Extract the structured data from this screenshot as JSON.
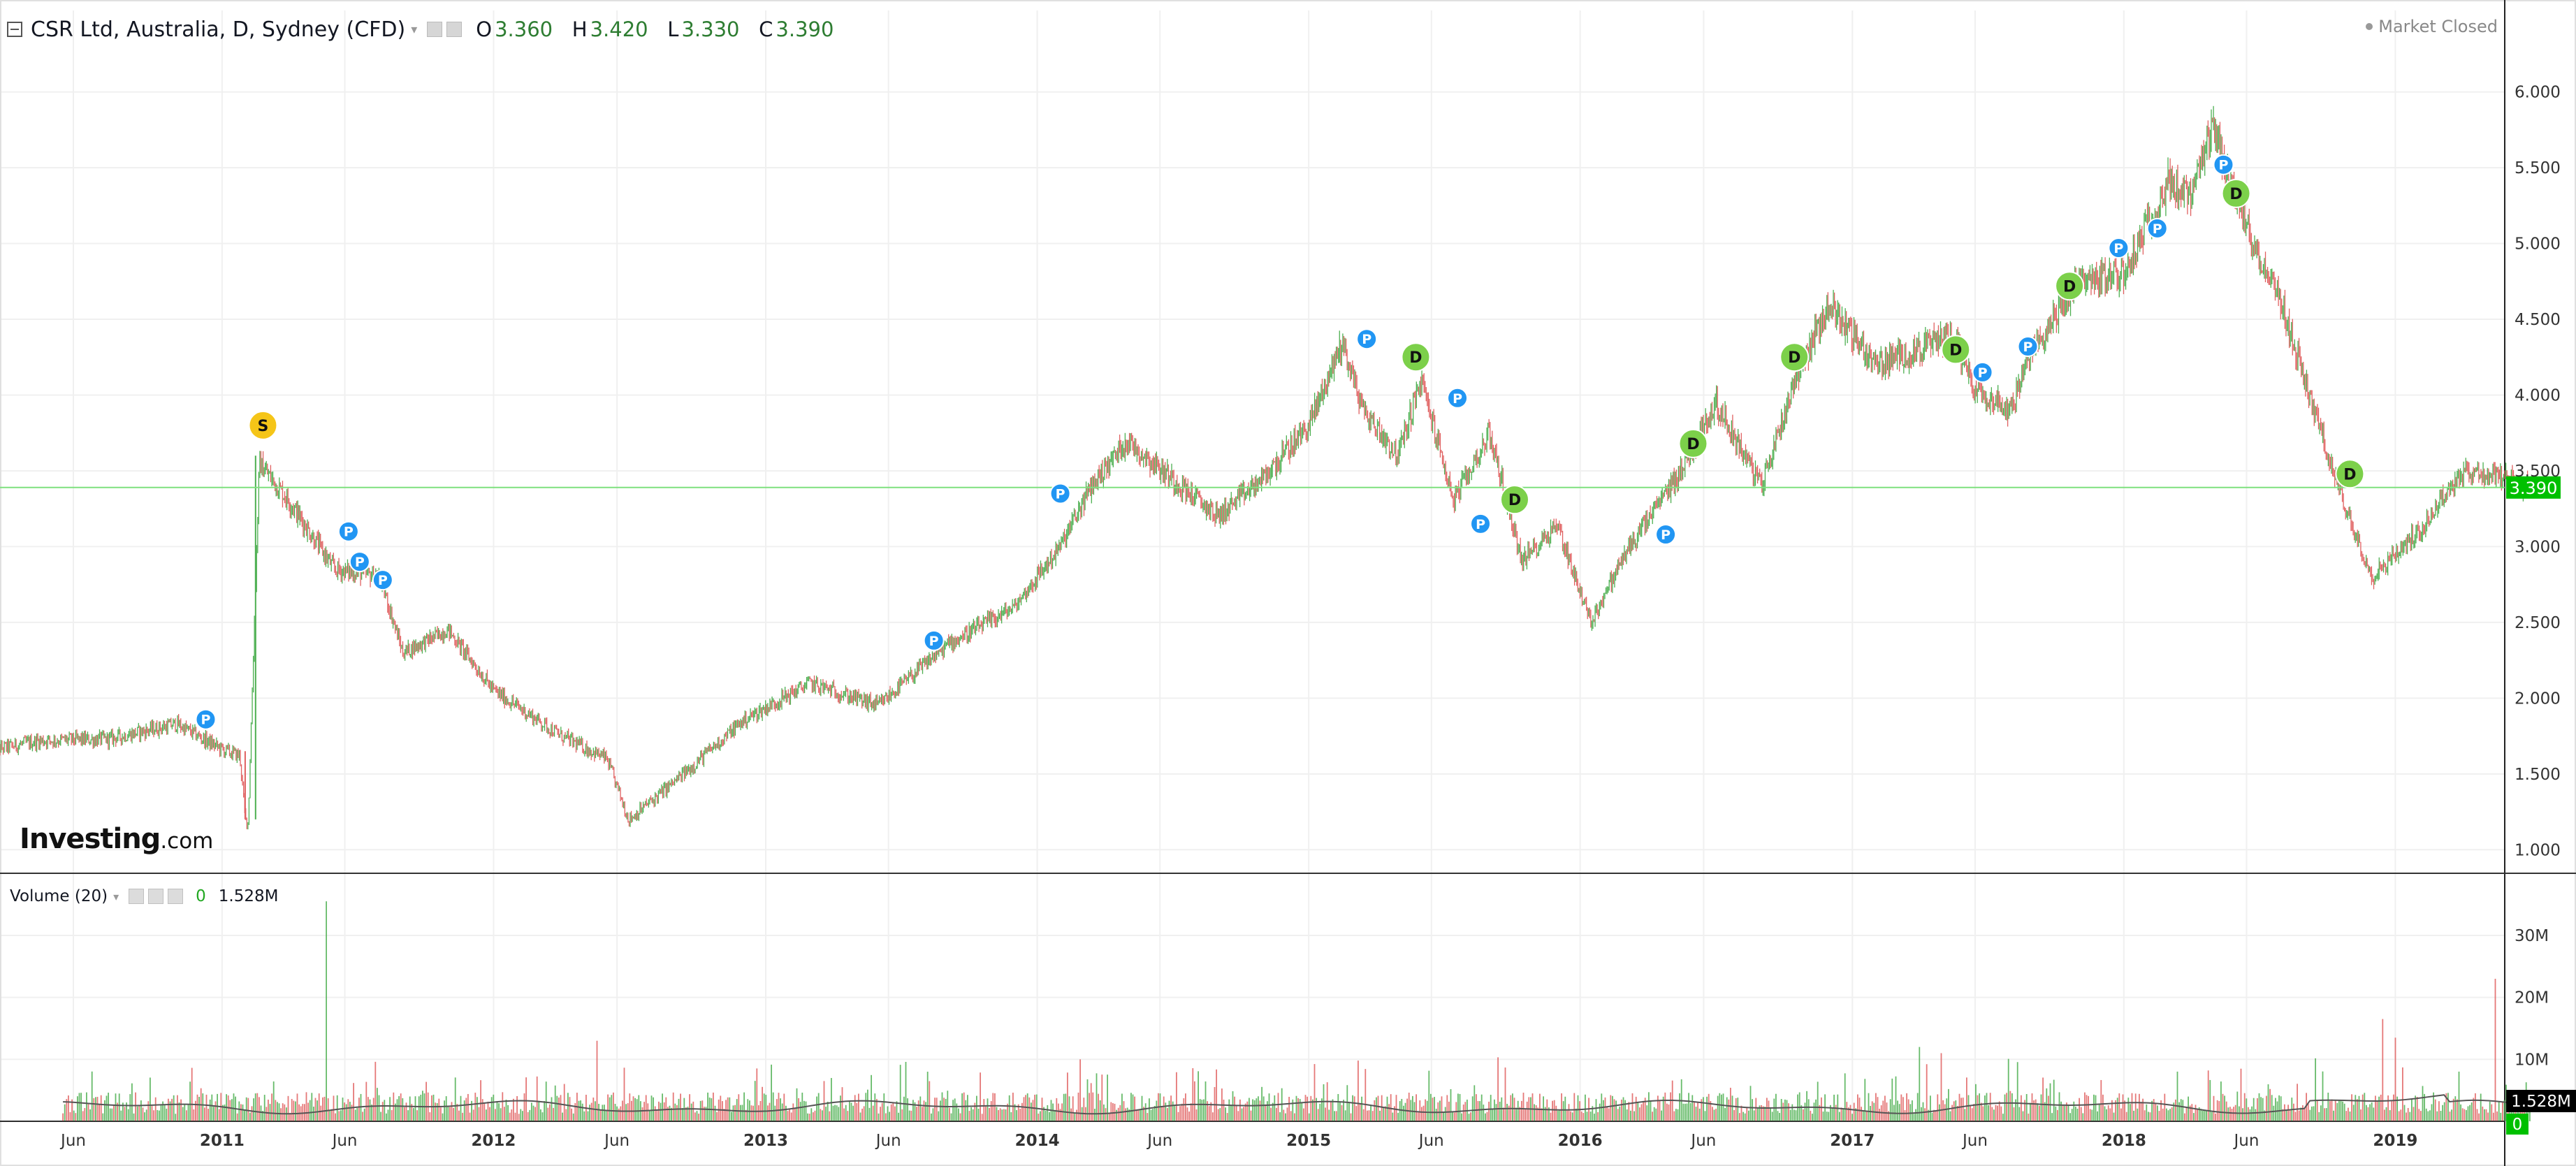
{
  "header": {
    "symbol_title": "CSR Ltd, Australia, D, Sydney (CFD)",
    "ohlc": {
      "o_label": "O",
      "o": "3.360",
      "h_label": "H",
      "h": "3.420",
      "l_label": "L",
      "l": "3.330",
      "c_label": "C",
      "c": "3.390"
    }
  },
  "market_status": "Market Closed",
  "logo": {
    "main": "Investing",
    "suffix": ".com"
  },
  "volume_header": {
    "title": "Volume (20)",
    "value_a": "0",
    "value_b": "1.528M"
  },
  "colors": {
    "up": "#4caf50",
    "down": "#e06060",
    "grid": "#f0f0f0",
    "last_price": "#00c000",
    "marker_p": "#2196f3",
    "marker_d": "#7cd04a",
    "marker_s": "#f5c518"
  },
  "chart_data": [
    {
      "type": "candlestick",
      "ylim": [
        0.9,
        6.1
      ],
      "y_ticks": [
        "1.000",
        "1.500",
        "2.000",
        "2.500",
        "3.000",
        "3.500",
        "4.000",
        "4.500",
        "5.000",
        "5.500",
        "6.000"
      ],
      "x_ticks": [
        "Jun",
        "2011",
        "Jun",
        "2012",
        "Jun",
        "2013",
        "Jun",
        "2014",
        "Jun",
        "2015",
        "Jun",
        "2016",
        "Jun",
        "2017",
        "Jun",
        "2018",
        "Jun",
        "2019"
      ],
      "last_price": "3.390",
      "close_path": [
        [
          "2010-03-01",
          1.66
        ],
        [
          "2010-05-01",
          1.72
        ],
        [
          "2010-08-01",
          1.73
        ],
        [
          "2010-11-01",
          1.83
        ],
        [
          "2011-01-01",
          1.66
        ],
        [
          "2011-01-25",
          1.62
        ],
        [
          "2011-02-01",
          1.2
        ],
        [
          "2011-02-05",
          1.18
        ],
        [
          "2011-02-20",
          3.55
        ],
        [
          "2011-04-01",
          3.3
        ],
        [
          "2011-06-01",
          2.85
        ],
        [
          "2011-08-01",
          2.8
        ],
        [
          "2011-09-01",
          2.3
        ],
        [
          "2011-11-01",
          2.45
        ],
        [
          "2012-01-01",
          2.05
        ],
        [
          "2012-04-01",
          1.75
        ],
        [
          "2012-06-01",
          1.6
        ],
        [
          "2012-07-01",
          1.2
        ],
        [
          "2012-09-01",
          1.45
        ],
        [
          "2012-12-01",
          1.85
        ],
        [
          "2013-03-01",
          2.1
        ],
        [
          "2013-06-01",
          1.95
        ],
        [
          "2013-09-01",
          2.35
        ],
        [
          "2013-12-01",
          2.6
        ],
        [
          "2014-02-01",
          3.0
        ],
        [
          "2014-03-15",
          3.4
        ],
        [
          "2014-05-01",
          3.7
        ],
        [
          "2014-07-01",
          3.45
        ],
        [
          "2014-09-01",
          3.2
        ],
        [
          "2014-11-01",
          3.45
        ],
        [
          "2015-01-01",
          3.8
        ],
        [
          "2015-02-15",
          4.35
        ],
        [
          "2015-03-15",
          3.9
        ],
        [
          "2015-05-01",
          3.6
        ],
        [
          "2015-06-01",
          4.1
        ],
        [
          "2015-07-15",
          3.3
        ],
        [
          "2015-09-01",
          3.75
        ],
        [
          "2015-10-15",
          2.9
        ],
        [
          "2015-12-01",
          3.15
        ],
        [
          "2016-01-15",
          2.5
        ],
        [
          "2016-03-01",
          2.95
        ],
        [
          "2016-05-15",
          3.5
        ],
        [
          "2016-07-01",
          3.95
        ],
        [
          "2016-09-01",
          3.4
        ],
        [
          "2016-10-15",
          4.1
        ],
        [
          "2016-12-01",
          4.6
        ],
        [
          "2017-02-01",
          4.2
        ],
        [
          "2017-04-01",
          4.3
        ],
        [
          "2017-05-15",
          4.4
        ],
        [
          "2017-06-15",
          4.05
        ],
        [
          "2017-08-01",
          3.9
        ],
        [
          "2017-09-01",
          4.3
        ],
        [
          "2017-11-01",
          4.75
        ],
        [
          "2018-01-01",
          4.8
        ],
        [
          "2018-03-01",
          5.4
        ],
        [
          "2018-04-01",
          5.3
        ],
        [
          "2018-05-01",
          5.75
        ],
        [
          "2018-06-15",
          5.1
        ],
        [
          "2018-08-01",
          4.6
        ],
        [
          "2018-09-01",
          4.1
        ],
        [
          "2018-10-15",
          3.4
        ],
        [
          "2018-12-01",
          2.8
        ],
        [
          "2019-02-01",
          3.1
        ],
        [
          "2019-04-01",
          3.5
        ],
        [
          "2019-06-01",
          3.45
        ],
        [
          "2019-07-01",
          3.39
        ]
      ],
      "markers": [
        {
          "date": "2010-12-10",
          "label": "P",
          "value": 1.86
        },
        {
          "date": "2011-02-25",
          "label": "S",
          "value": 3.8
        },
        {
          "date": "2011-06-20",
          "label": "P",
          "value": 3.1
        },
        {
          "date": "2011-07-05",
          "label": "P",
          "value": 2.9
        },
        {
          "date": "2011-08-05",
          "label": "P",
          "value": 2.78
        },
        {
          "date": "2013-08-15",
          "label": "P",
          "value": 2.38
        },
        {
          "date": "2014-02-01",
          "label": "P",
          "value": 3.35
        },
        {
          "date": "2015-03-20",
          "label": "P",
          "value": 4.37
        },
        {
          "date": "2015-05-25",
          "label": "D",
          "value": 4.25
        },
        {
          "date": "2015-07-20",
          "label": "P",
          "value": 3.98
        },
        {
          "date": "2015-08-20",
          "label": "P",
          "value": 3.15
        },
        {
          "date": "2015-10-05",
          "label": "D",
          "value": 3.31
        },
        {
          "date": "2016-04-25",
          "label": "P",
          "value": 3.08
        },
        {
          "date": "2016-06-01",
          "label": "D",
          "value": 3.68
        },
        {
          "date": "2016-10-15",
          "label": "D",
          "value": 4.25
        },
        {
          "date": "2017-05-20",
          "label": "D",
          "value": 4.3
        },
        {
          "date": "2017-06-25",
          "label": "P",
          "value": 4.15
        },
        {
          "date": "2017-08-25",
          "label": "P",
          "value": 4.32
        },
        {
          "date": "2017-10-20",
          "label": "D",
          "value": 4.72
        },
        {
          "date": "2017-12-25",
          "label": "P",
          "value": 4.97
        },
        {
          "date": "2018-02-15",
          "label": "P",
          "value": 5.1
        },
        {
          "date": "2018-05-15",
          "label": "P",
          "value": 5.52
        },
        {
          "date": "2018-06-01",
          "label": "D",
          "value": 5.33
        },
        {
          "date": "2018-11-01",
          "label": "D",
          "value": 3.48
        }
      ]
    },
    {
      "type": "bar",
      "series": [
        {
          "name": "Volume (20)"
        }
      ],
      "y_ticks": [
        "10M",
        "20M",
        "30M"
      ],
      "ylim": [
        0,
        38
      ],
      "last_value": "1.528M",
      "zero_label": "0",
      "spikes": [
        [
          "2011-05-20",
          35.5
        ],
        [
          "2012-05-20",
          13
        ],
        [
          "2014-03-01",
          10
        ],
        [
          "2017-04-01",
          12
        ],
        [
          "2017-05-01",
          11
        ],
        [
          "2018-12-15",
          16.5
        ],
        [
          "2019-01-01",
          13.5
        ],
        [
          "2019-05-15",
          23
        ]
      ]
    }
  ]
}
